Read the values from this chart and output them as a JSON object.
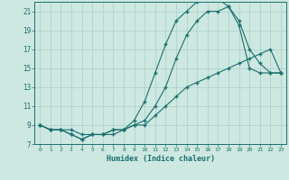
{
  "xlabel": "Humidex (Indice chaleur)",
  "bg_color": "#cce8e0",
  "grid_color": "#aacec8",
  "line_color": "#1a7070",
  "xlim": [
    -0.5,
    23.5
  ],
  "ylim": [
    7,
    22
  ],
  "xticks": [
    0,
    1,
    2,
    3,
    4,
    5,
    6,
    7,
    8,
    9,
    10,
    11,
    12,
    13,
    14,
    15,
    16,
    17,
    18,
    19,
    20,
    21,
    22,
    23
  ],
  "yticks": [
    7,
    9,
    11,
    13,
    15,
    17,
    19,
    21
  ],
  "line1_x": [
    0,
    1,
    2,
    3,
    4,
    5,
    6,
    7,
    8,
    9,
    10,
    11,
    12,
    13,
    14,
    15,
    16,
    17,
    18,
    19,
    20,
    21,
    22,
    23
  ],
  "line1_y": [
    9.0,
    8.5,
    8.5,
    8.0,
    7.5,
    8.0,
    8.0,
    8.5,
    8.5,
    9.5,
    11.5,
    14.5,
    17.5,
    20.0,
    21.0,
    22.0,
    22.3,
    22.3,
    21.5,
    20.0,
    17.0,
    15.5,
    14.5,
    14.5
  ],
  "line2_x": [
    0,
    1,
    2,
    3,
    4,
    5,
    6,
    7,
    8,
    9,
    10,
    11,
    12,
    13,
    14,
    15,
    16,
    17,
    18,
    19,
    20,
    21,
    22,
    23
  ],
  "line2_y": [
    9.0,
    8.5,
    8.5,
    8.5,
    8.0,
    8.0,
    8.0,
    8.0,
    8.5,
    9.0,
    9.5,
    11.0,
    13.0,
    16.0,
    18.5,
    20.0,
    21.0,
    21.0,
    21.5,
    19.5,
    15.0,
    14.5,
    14.5,
    14.5
  ],
  "line3_x": [
    0,
    1,
    2,
    3,
    4,
    5,
    6,
    7,
    8,
    9,
    10,
    11,
    12,
    13,
    14,
    15,
    16,
    17,
    18,
    19,
    20,
    21,
    22,
    23
  ],
  "line3_y": [
    9.0,
    8.5,
    8.5,
    8.0,
    7.5,
    8.0,
    8.0,
    8.5,
    8.5,
    9.0,
    9.0,
    10.0,
    11.0,
    12.0,
    13.0,
    13.5,
    14.0,
    14.5,
    15.0,
    15.5,
    16.0,
    16.5,
    17.0,
    14.5
  ]
}
